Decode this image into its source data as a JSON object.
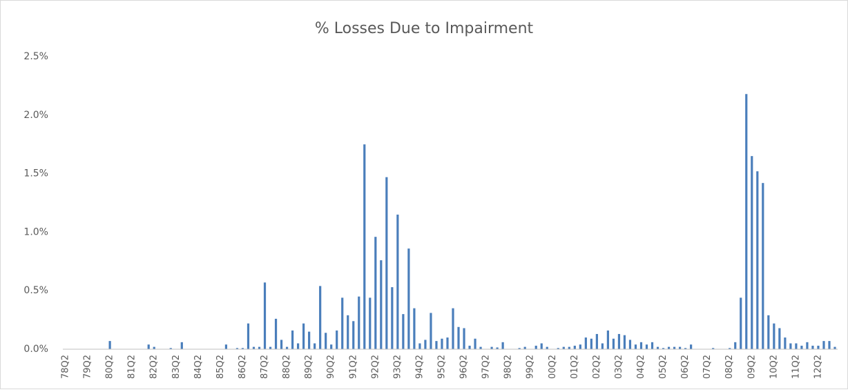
{
  "chart_data": {
    "type": "bar",
    "title": "% Losses Due to Impairment",
    "categories": [
      "78Q2",
      null,
      null,
      null,
      "79Q2",
      null,
      null,
      null,
      "80Q2",
      null,
      null,
      null,
      "81Q2",
      null,
      null,
      null,
      "82Q2",
      null,
      null,
      null,
      "83Q2",
      null,
      null,
      null,
      "84Q2",
      null,
      null,
      null,
      "85Q2",
      null,
      null,
      null,
      "86Q2",
      null,
      null,
      null,
      "87Q2",
      null,
      null,
      null,
      "88Q2",
      null,
      null,
      null,
      "89Q2",
      null,
      null,
      null,
      "90Q2",
      null,
      null,
      null,
      "91Q2",
      null,
      null,
      null,
      "92Q2",
      null,
      null,
      null,
      "93Q2",
      null,
      null,
      null,
      "94Q2",
      null,
      null,
      null,
      "95Q2",
      null,
      null,
      null,
      "96Q2",
      null,
      null,
      null,
      "97Q2",
      null,
      null,
      null,
      "98Q2",
      null,
      null,
      null,
      "99Q2",
      null,
      null,
      null,
      "00Q2",
      null,
      null,
      null,
      "01Q2",
      null,
      null,
      null,
      "02Q2",
      null,
      null,
      null,
      "03Q2",
      null,
      null,
      null,
      "04Q2",
      null,
      null,
      null,
      "05Q2",
      null,
      null,
      null,
      "06Q2",
      null,
      null,
      null,
      "07Q2",
      null,
      null,
      null,
      "08Q2",
      null,
      null,
      null,
      "09Q2",
      null,
      null,
      null,
      "10Q2",
      null,
      null,
      null,
      "11Q2",
      null,
      null,
      null,
      "12Q2",
      null,
      null,
      null
    ],
    "values": [
      0,
      0,
      0,
      0,
      0,
      0,
      0,
      0,
      0.07,
      0,
      0,
      0,
      0,
      0,
      0,
      0.04,
      0.02,
      0,
      0,
      0.01,
      0,
      0.06,
      0,
      0,
      0,
      0,
      0,
      0,
      0,
      0.04,
      0,
      0.01,
      0.01,
      0.22,
      0.02,
      0.02,
      0.57,
      0.02,
      0.26,
      0.08,
      0.02,
      0.16,
      0.05,
      0.22,
      0.15,
      0.05,
      0.54,
      0.14,
      0.04,
      0.16,
      0.44,
      0.29,
      0.24,
      0.45,
      1.75,
      0.44,
      0.96,
      0.76,
      1.47,
      0.53,
      1.15,
      0.3,
      0.86,
      0.35,
      0.05,
      0.08,
      0.31,
      0.07,
      0.09,
      0.1,
      0.35,
      0.19,
      0.18,
      0.03,
      0.09,
      0.02,
      0,
      0.02,
      0.015,
      0.06,
      0,
      0,
      0.01,
      0.02,
      0,
      0.03,
      0.05,
      0.02,
      0,
      0.01,
      0.02,
      0.02,
      0.03,
      0.04,
      0.1,
      0.09,
      0.13,
      0.05,
      0.16,
      0.09,
      0.13,
      0.12,
      0.08,
      0.04,
      0.06,
      0.04,
      0.06,
      0.02,
      0.01,
      0.02,
      0.02,
      0.02,
      0.01,
      0.04,
      0,
      0,
      0,
      0.01,
      0,
      0,
      0.01,
      0.06,
      0.44,
      2.18,
      1.65,
      1.52,
      1.42,
      0.29,
      0.22,
      0.18,
      0.1,
      0.05,
      0.05,
      0.03,
      0.06,
      0.03,
      0.03,
      0.07,
      0.07,
      0.02
    ],
    "color": "#4a7ebb",
    "ylim": [
      0,
      2.5
    ],
    "yticks": [
      {
        "value": 0,
        "label": "0.0%"
      },
      {
        "value": 0.5,
        "label": "0.5%"
      },
      {
        "value": 1,
        "label": "1.0%"
      },
      {
        "value": 1.5,
        "label": "1.5%"
      },
      {
        "value": 2,
        "label": "2.0%"
      },
      {
        "value": 2.5,
        "label": "2.5%"
      }
    ],
    "grid": false
  }
}
